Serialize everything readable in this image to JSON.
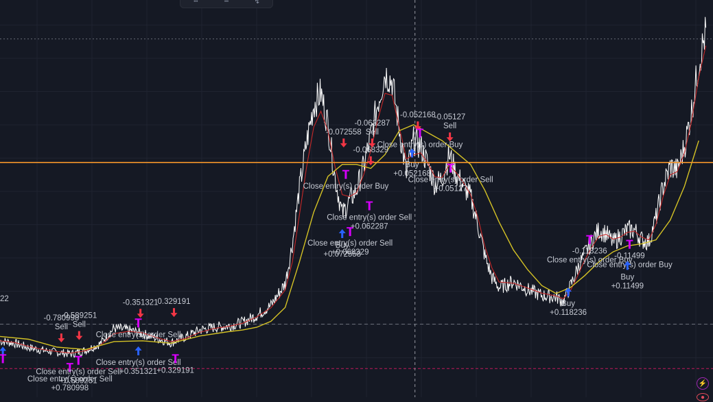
{
  "toolbar": {
    "tools": [
      {
        "icon": "line-tool-icon"
      },
      {
        "icon": "ray-tool-icon"
      },
      {
        "icon": "brush-tool-icon"
      }
    ]
  },
  "colors": {
    "background": "#151924",
    "grid": "#1f2330",
    "price": "#ffffff",
    "fast_ma": "#c62828",
    "slow_ma": "#d4c225",
    "horizontal_level": "#f4952a",
    "crosshair": "#9598a1",
    "dashed_level": "#6a6e78",
    "pink_level": "#c2185b",
    "buy_arrow": "#2962ff",
    "sell_arrow": "#f23645",
    "close_marker": "#d500f9",
    "label_text": "#c7cbd4"
  },
  "edge_label": "22",
  "controls": {
    "lightning": "lightning-icon",
    "bottom": "indicator-icon"
  },
  "chart_data": {
    "type": "line",
    "title": "",
    "xlabel": "",
    "ylabel": "",
    "ylim": [
      0,
      100
    ],
    "xlim": [
      0,
      100
    ],
    "grid": true,
    "levels": [
      {
        "name": "horizontal-level",
        "y": 59.1
      },
      {
        "name": "dashed-level-top",
        "y": 90.2
      },
      {
        "name": "dashed-level-mid",
        "y": 18.4
      },
      {
        "name": "pink-level",
        "y": 7.2
      }
    ],
    "crosshair_x": 58.2,
    "series": [
      {
        "role": "price",
        "x": [
          0,
          2,
          4,
          6,
          8,
          10,
          12,
          14,
          16,
          18,
          20,
          22,
          24,
          26,
          28,
          30,
          32,
          34,
          36,
          38,
          40,
          41,
          42,
          43,
          44,
          45,
          46,
          47,
          48,
          49,
          50,
          51,
          52,
          53,
          54,
          55,
          56,
          57,
          58,
          59,
          60,
          61,
          62,
          63,
          64,
          65,
          66,
          67,
          68,
          69,
          70,
          72,
          74,
          76,
          78,
          79,
          80,
          81,
          82,
          83,
          84,
          85,
          86,
          87,
          88,
          89,
          90,
          91,
          92,
          93,
          94,
          95,
          96,
          97,
          98,
          99
        ],
        "y": [
          14.2,
          13.6,
          12.5,
          11.8,
          11.3,
          10.9,
          11.8,
          13.4,
          17.4,
          16.9,
          16.0,
          14.8,
          13.7,
          15.2,
          16.9,
          17.6,
          17.9,
          18.8,
          20.6,
          23.1,
          28.6,
          38.6,
          52.6,
          64.1,
          73.6,
          76.6,
          68.6,
          55.1,
          46.1,
          49.5,
          52.1,
          58.1,
          65.6,
          74.1,
          81.6,
          79.6,
          67.6,
          56.1,
          64.6,
          63.1,
          58.6,
          53.6,
          55.1,
          61.1,
          56.1,
          53.1,
          50.5,
          43.6,
          35.6,
          30.1,
          27.6,
          29.1,
          27.1,
          25.6,
          25.2,
          24.1,
          27.9,
          32.4,
          36.1,
          39.1,
          42.1,
          41.2,
          38.9,
          40.6,
          42.1,
          42.1,
          39.6,
          39.1,
          45.1,
          53.1,
          58.1,
          57.1,
          63.1,
          72.1,
          84.1,
          92.1
        ]
      },
      {
        "role": "fast-ma",
        "x": [
          0,
          2,
          4,
          6,
          8,
          10,
          12,
          14,
          16,
          18,
          20,
          22,
          24,
          26,
          28,
          30,
          32,
          34,
          36,
          38,
          40,
          41,
          42,
          43,
          44,
          45,
          46,
          47,
          48,
          49,
          50,
          51,
          52,
          53,
          54,
          55,
          56,
          57,
          58,
          59,
          60,
          61,
          62,
          63,
          64,
          65,
          66,
          67,
          68,
          69,
          70,
          72,
          74,
          76,
          78,
          79,
          80,
          81,
          82,
          83,
          84,
          85,
          86,
          87,
          88,
          89,
          90,
          91,
          92,
          93,
          94,
          95,
          96,
          97,
          98,
          99
        ],
        "y": [
          14.2,
          13.8,
          12.8,
          12.0,
          11.5,
          11.1,
          11.7,
          13.0,
          16.0,
          16.6,
          16.2,
          15.0,
          14.0,
          14.8,
          16.3,
          17.3,
          17.8,
          18.6,
          20.2,
          22.5,
          27.0,
          34.0,
          46.0,
          58.0,
          68.0,
          72.0,
          67.0,
          58.0,
          51.0,
          50.5,
          51.5,
          56.0,
          62.0,
          70.0,
          76.5,
          76.0,
          68.0,
          60.0,
          61.0,
          61.5,
          59.0,
          55.5,
          55.3,
          58.5,
          56.5,
          54.0,
          51.0,
          45.5,
          38.0,
          32.5,
          29.0,
          28.7,
          27.5,
          26.2,
          25.5,
          24.8,
          26.8,
          30.5,
          34.5,
          37.8,
          40.5,
          41.0,
          39.8,
          40.3,
          41.5,
          41.8,
          40.3,
          39.6,
          43.5,
          50.5,
          56.0,
          56.8,
          61.5,
          69.5,
          80.5,
          88.5
        ]
      },
      {
        "role": "slow-ma",
        "x": [
          0,
          4,
          8,
          12,
          16,
          20,
          24,
          28,
          32,
          34,
          36,
          38,
          40,
          42,
          44,
          46,
          48,
          50,
          52,
          54,
          56,
          58,
          60,
          62,
          64,
          66,
          68,
          70,
          72,
          74,
          76,
          78,
          80,
          82,
          84,
          86,
          88,
          90,
          92,
          94,
          96,
          98
        ],
        "y": [
          15.3,
          14.6,
          12.6,
          12.0,
          14.0,
          14.2,
          13.6,
          15.4,
          16.5,
          16.9,
          17.6,
          19.1,
          22.6,
          34.1,
          46.6,
          55.6,
          58.6,
          58.6,
          57.6,
          61.1,
          67.1,
          68.6,
          66.6,
          64.6,
          61.6,
          58.6,
          52.1,
          44.1,
          37.1,
          32.1,
          28.1,
          26.1,
          27.6,
          30.6,
          34.1,
          36.6,
          38.1,
          38.6,
          39.6,
          44.6,
          53.1,
          64.6
        ]
      }
    ],
    "signals": [
      {
        "kind": "buy",
        "x": 0.4,
        "y": 11.5,
        "text": ""
      },
      {
        "kind": "close",
        "x": 0.4,
        "y": 9.6,
        "text": ""
      },
      {
        "kind": "sell",
        "x": 8.6,
        "y": 15.0,
        "text": "-0.780998\nSell"
      },
      {
        "kind": "sell",
        "x": 11.1,
        "y": 15.6,
        "text": "-0.589251\nSell"
      },
      {
        "kind": "close",
        "x": 9.8,
        "y": 7.4,
        "text": "Close entry(s) order Sell\n+0.780998"
      },
      {
        "kind": "close",
        "x": 11.0,
        "y": 9.2,
        "text": "Close entry(s) order Sell\n+0.589251"
      },
      {
        "kind": "sell",
        "x": 19.7,
        "y": 21.2,
        "text": "-0.351321"
      },
      {
        "kind": "sell",
        "x": 24.4,
        "y": 21.4,
        "text": "0.329191"
      },
      {
        "kind": "close",
        "x": 19.4,
        "y": 18.6,
        "text": "Close entry(s) order Sell"
      },
      {
        "kind": "buy",
        "x": 19.4,
        "y": 11.6,
        "text": "Close entry(s) order Sell\n+0.351321"
      },
      {
        "kind": "close",
        "x": 24.6,
        "y": 9.6,
        "text": "+0.329191"
      },
      {
        "kind": "close",
        "x": 48.5,
        "y": 56.0,
        "text": "Close entry(s) order Buy"
      },
      {
        "kind": "sell",
        "x": 48.2,
        "y": 64.1,
        "text": "-0.072558"
      },
      {
        "kind": "buy",
        "x": 48.0,
        "y": 41.1,
        "text": "Buy\n+0.072558"
      },
      {
        "kind": "sell",
        "x": 52.0,
        "y": 59.6,
        "text": "-0.068329"
      },
      {
        "kind": "close",
        "x": 49.1,
        "y": 41.6,
        "text": "Close entry(s) order Sell\n+0.068329"
      },
      {
        "kind": "close",
        "x": 51.8,
        "y": 48.1,
        "text": "Close entry(s) order Sell\n+0.062287"
      },
      {
        "kind": "sell",
        "x": 52.2,
        "y": 64.1,
        "text": "-0.062287\nSell"
      },
      {
        "kind": "sell",
        "x": 58.6,
        "y": 68.4,
        "text": "-0.052168"
      },
      {
        "kind": "close",
        "x": 58.9,
        "y": 66.4,
        "text": "Close entry(s) order Buy"
      },
      {
        "kind": "buy",
        "x": 57.8,
        "y": 61.4,
        "text": "Buy\n+0.052168"
      },
      {
        "kind": "sell",
        "x": 63.1,
        "y": 65.6,
        "text": "-0.05127\nSell"
      },
      {
        "kind": "close",
        "x": 63.2,
        "y": 57.6,
        "text": "Close entry(s) order Sell\n+0.05127"
      },
      {
        "kind": "buy",
        "x": 79.7,
        "y": 26.4,
        "text": "Buy\n+0.118236"
      },
      {
        "kind": "close",
        "x": 82.7,
        "y": 39.6,
        "text": "-0.118236\nClose entry(s) order Buy"
      },
      {
        "kind": "close",
        "x": 88.3,
        "y": 38.4,
        "text": "-0.11499\nClose entry(s) order Buy"
      },
      {
        "kind": "buy",
        "x": 88.0,
        "y": 33.1,
        "text": "Buy\n+0.11499"
      }
    ]
  }
}
